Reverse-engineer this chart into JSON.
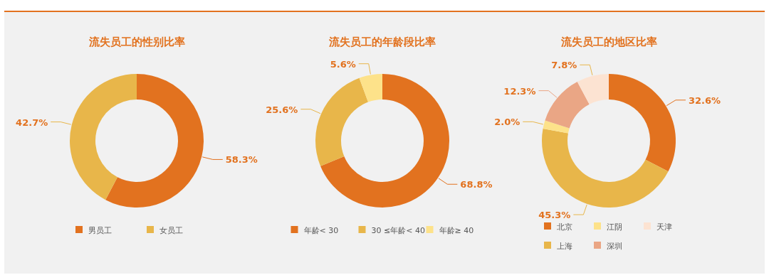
{
  "chart_data": [
    {
      "type": "donut",
      "title": "流失员工的性别比率",
      "categories": [
        "男员工",
        "女员工"
      ],
      "values": [
        58.3,
        42.7
      ],
      "value_labels": [
        "58.3%",
        "42.7%"
      ],
      "colors": [
        "#e2721f",
        "#e8b64a"
      ],
      "legend": "bottom"
    },
    {
      "type": "donut",
      "title": "流失员工的年龄段比率",
      "categories": [
        "年龄< 30",
        "30 ≤年龄< 40",
        "年龄≥ 40"
      ],
      "values": [
        68.8,
        25.6,
        5.6
      ],
      "value_labels": [
        "68.8%",
        "25.6%",
        "5.6%"
      ],
      "colors": [
        "#e2721f",
        "#e8b64a",
        "#fde28a"
      ],
      "legend": "bottom"
    },
    {
      "type": "donut",
      "title": "流失员工的地区比率",
      "categories": [
        "北京",
        "上海",
        "江阴",
        "深圳",
        "天津"
      ],
      "values": [
        32.6,
        45.3,
        2.0,
        12.3,
        7.8
      ],
      "value_labels": [
        "32.6%",
        "45.3%",
        "2.0%",
        "12.3%",
        "7.8%"
      ],
      "colors": [
        "#e2721f",
        "#e8b64a",
        "#fde28a",
        "#eaa685",
        "#fce3d2"
      ],
      "legend": "bottom"
    }
  ]
}
